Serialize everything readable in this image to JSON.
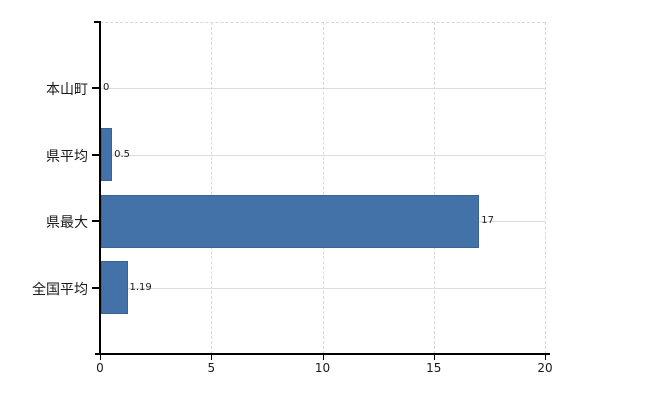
{
  "chart_data": {
    "type": "bar",
    "orientation": "horizontal",
    "title": "",
    "xlabel": "",
    "ylabel": "",
    "categories": [
      "本山町",
      "県平均",
      "県最大",
      "全国平均"
    ],
    "values": [
      0,
      0.5,
      17,
      1.19
    ],
    "value_labels": [
      "0",
      "0.5",
      "17",
      "1.19"
    ],
    "xlim": [
      0,
      20
    ],
    "x_ticks": [
      "0",
      "5",
      "10",
      "15",
      "20"
    ],
    "x_tick_values": [
      0,
      5,
      10,
      15,
      20
    ],
    "grid": true,
    "legend_position": "none",
    "colors": {
      "bar_fill": "#4272a8",
      "bar_border": "#3a6392",
      "gridline_vertical": "#d8d8d8",
      "gridline_horizontal": "#d9ded9",
      "axis": "#000000",
      "text": "#1a1a1a",
      "background": "#ffffff"
    }
  }
}
